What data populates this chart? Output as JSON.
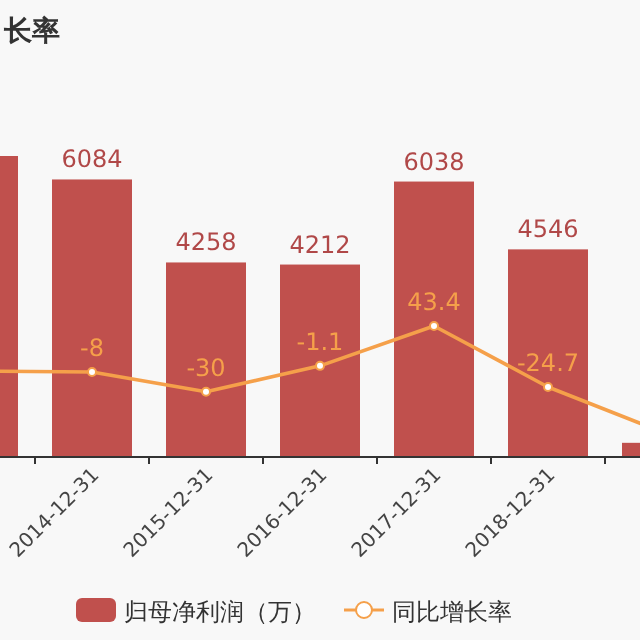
{
  "chart_data": {
    "type": "bar",
    "title": "长率",
    "categories": [
      null,
      "2014-12-31",
      "2015-12-31",
      "2016-12-31",
      "2017-12-31",
      "2018-12-31",
      null
    ],
    "series": [
      {
        "name": "归母净利润（万）",
        "color": "#c0504d",
        "values": [
          6600,
          6084,
          4258,
          4212,
          6038,
          4546,
          290
        ],
        "value_labels": [
          null,
          "6084",
          "4258",
          "4212",
          "6038",
          "4546",
          null
        ]
      },
      {
        "name": "同比增长率",
        "type": "line",
        "axis": "y2",
        "color": "#f5a04a",
        "marker": "circle",
        "values": [
          -7,
          -8,
          -30,
          -1.1,
          43.4,
          -24.7,
          -75
        ],
        "value_labels": [
          null,
          "-8",
          "-30",
          "-1.1",
          "43.4",
          "-24.7",
          null
        ]
      }
    ],
    "legend": "bottom"
  }
}
